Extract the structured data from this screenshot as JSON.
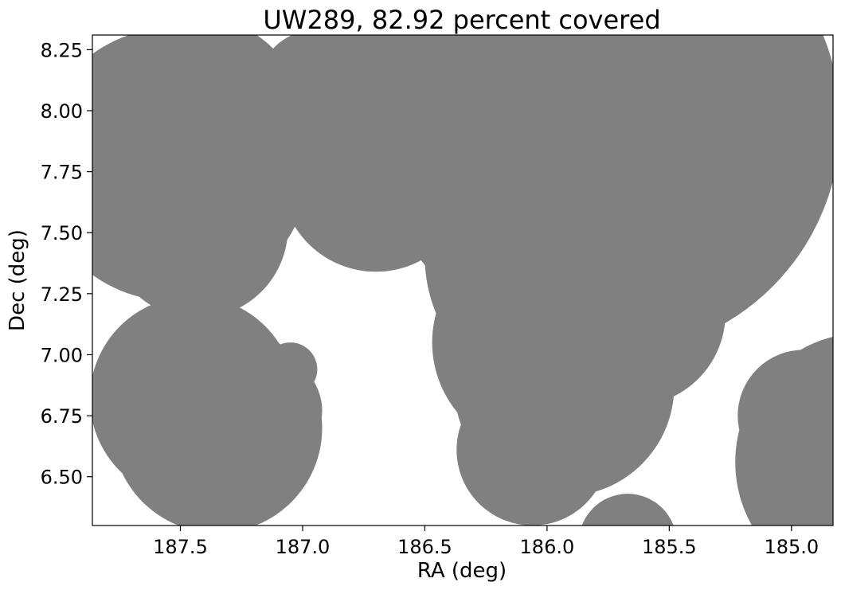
{
  "chart_data": {
    "type": "scatter",
    "title": "UW289, 82.92 percent covered",
    "xlabel": "RA (deg)",
    "ylabel": "Dec (deg)",
    "xlim": [
      187.86,
      184.83
    ],
    "ylim": [
      6.3,
      8.31
    ],
    "x_inverted": true,
    "grid": false,
    "fill_color": "#808080",
    "x_ticks": [
      {
        "value": 187.5,
        "label": "187.5"
      },
      {
        "value": 187.0,
        "label": "187.0"
      },
      {
        "value": 186.5,
        "label": "186.5"
      },
      {
        "value": 186.0,
        "label": "186.0"
      },
      {
        "value": 185.5,
        "label": "185.5"
      },
      {
        "value": 185.0,
        "label": "185.0"
      }
    ],
    "y_ticks": [
      {
        "value": 6.5,
        "label": "6.50"
      },
      {
        "value": 6.75,
        "label": "6.75"
      },
      {
        "value": 7.0,
        "label": "7.00"
      },
      {
        "value": 7.25,
        "label": "7.25"
      },
      {
        "value": 7.5,
        "label": "7.50"
      },
      {
        "value": 7.75,
        "label": "7.75"
      },
      {
        "value": 8.0,
        "label": "8.00"
      },
      {
        "value": 8.25,
        "label": "8.25"
      }
    ],
    "circles": [
      {
        "x": 187.53,
        "y": 7.78,
        "r": 0.56
      },
      {
        "x": 187.42,
        "y": 7.96,
        "r": 0.42
      },
      {
        "x": 187.43,
        "y": 7.52,
        "r": 0.37
      },
      {
        "x": 187.45,
        "y": 6.82,
        "r": 0.42
      },
      {
        "x": 187.35,
        "y": 6.7,
        "r": 0.43
      },
      {
        "x": 187.05,
        "y": 6.94,
        "r": 0.11
      },
      {
        "x": 187.15,
        "y": 6.77,
        "r": 0.23
      },
      {
        "x": 187.0,
        "y": 7.9,
        "r": 0.37
      },
      {
        "x": 186.95,
        "y": 8.1,
        "r": 0.23
      },
      {
        "x": 186.7,
        "y": 7.73,
        "r": 0.39
      },
      {
        "x": 186.8,
        "y": 8.25,
        "r": 0.23
      },
      {
        "x": 185.75,
        "y": 7.95,
        "r": 0.95
      },
      {
        "x": 185.9,
        "y": 7.4,
        "r": 0.6
      },
      {
        "x": 186.02,
        "y": 7.05,
        "r": 0.45
      },
      {
        "x": 185.93,
        "y": 6.87,
        "r": 0.45
      },
      {
        "x": 185.65,
        "y": 7.17,
        "r": 0.38
      },
      {
        "x": 186.06,
        "y": 6.61,
        "r": 0.31
      },
      {
        "x": 185.67,
        "y": 6.23,
        "r": 0.2
      },
      {
        "x": 184.7,
        "y": 6.56,
        "r": 0.53
      },
      {
        "x": 184.95,
        "y": 6.75,
        "r": 0.27
      }
    ]
  }
}
